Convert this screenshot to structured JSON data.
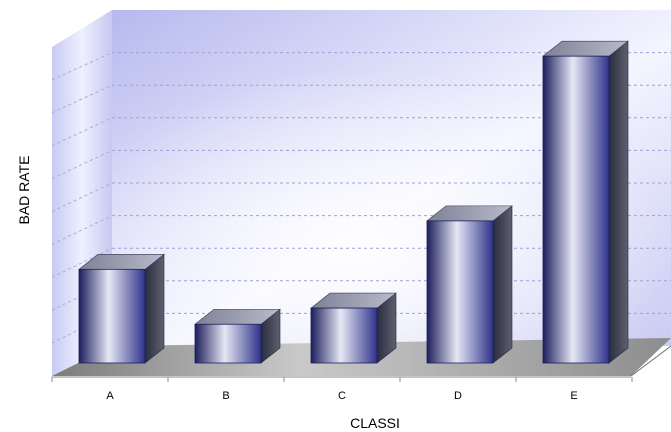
{
  "chart_data": {
    "type": "bar",
    "title": "",
    "xlabel": "CLASSI",
    "ylabel": "BAD RATE",
    "categories": [
      "A",
      "B",
      "C",
      "D",
      "E"
    ],
    "values": [
      29,
      12,
      17,
      44,
      95
    ],
    "ylim": [
      0,
      100
    ],
    "grid": true,
    "bar_color": "#5a5fa8",
    "bar_highlight": "#e6e7f4",
    "bar_shadow": "#1c1f5c",
    "floor_color": "#9a9a9a",
    "wall_color": "#c4c6f0"
  }
}
